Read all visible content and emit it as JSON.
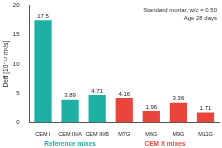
{
  "chart_data": {
    "type": "bar",
    "y_label": "Deff [10⁻¹² m²/s]",
    "annotations": [
      "Standard mortar, w/c = 0.50",
      "Age 28 days"
    ],
    "categories": [
      "CEM I",
      "CEM III/A",
      "CEM III/B",
      "M7G",
      "M6G",
      "M9G",
      "M11G"
    ],
    "values": [
      17.5,
      3.89,
      4.71,
      4.16,
      1.96,
      3.36,
      1.71
    ],
    "colors": [
      "#1eb0a3",
      "#1eb0a3",
      "#1eb0a3",
      "#e8453c",
      "#e8453c",
      "#e8453c",
      "#e8453c"
    ],
    "groups": [
      {
        "label": "Reference mixes",
        "color": "#1eb0a3",
        "categories": [
          "CEM I",
          "CEM III/A",
          "CEM III/B"
        ]
      },
      {
        "label": "CEM X mixes",
        "color": "#e8453c",
        "categories": [
          "M7G",
          "M6G",
          "M9G",
          "M11G"
        ]
      }
    ],
    "ylim": [
      0,
      20
    ],
    "yticks": [
      0,
      5,
      10,
      15,
      20
    ],
    "grid": false,
    "data_labels": true
  }
}
